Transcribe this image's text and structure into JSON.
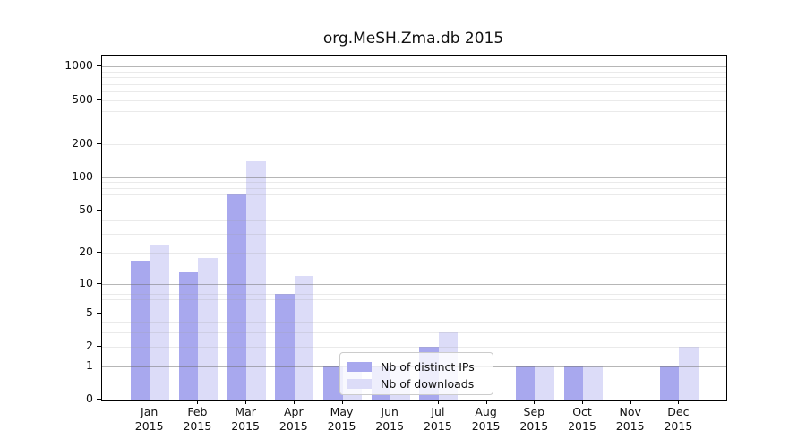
{
  "title": "org.MeSH.Zma.db 2015",
  "year": "2015",
  "chart_data": {
    "type": "bar",
    "title": "org.MeSH.Zma.db 2015",
    "categories": [
      "Jan",
      "Feb",
      "Mar",
      "Apr",
      "May",
      "Jun",
      "Jul",
      "Aug",
      "Sep",
      "Oct",
      "Nov",
      "Dec"
    ],
    "x_tick_year": "2015",
    "series": [
      {
        "name": "Nb of distinct IPs",
        "color": "#a8a8ee",
        "values": [
          17,
          13,
          70,
          8,
          1,
          1,
          2,
          0,
          1,
          1,
          0,
          1
        ]
      },
      {
        "name": "Nb of downloads",
        "color": "#dcdcf8",
        "values": [
          24,
          18,
          140,
          12,
          1,
          1,
          3,
          0,
          1,
          1,
          0,
          2
        ]
      }
    ],
    "xlabel": "",
    "ylabel": "",
    "yscale": "log1p",
    "ylim": [
      0,
      1260
    ],
    "yticks": [
      0,
      1,
      2,
      5,
      10,
      20,
      50,
      100,
      200,
      500,
      1000
    ],
    "grid": true,
    "grid_major": [
      1,
      10,
      100,
      1000
    ],
    "grid_minor": [
      2,
      3,
      4,
      5,
      6,
      7,
      8,
      9,
      20,
      30,
      40,
      50,
      60,
      70,
      80,
      90,
      200,
      300,
      400,
      500,
      600,
      700,
      800,
      900
    ],
    "legend_position": "lower center-left, overlapping May-Jul bars",
    "legend_frame": {
      "background_alpha": 0.8,
      "border_color": "#cccccc"
    }
  },
  "colors": {
    "distinct_ips_bar": "#a8a8ee",
    "downloads_bar": "#dcdcf8",
    "grid_major": "#b8b8b8",
    "grid_minor": "#e7e7e7",
    "spine": "#000000",
    "text": "#111111"
  }
}
